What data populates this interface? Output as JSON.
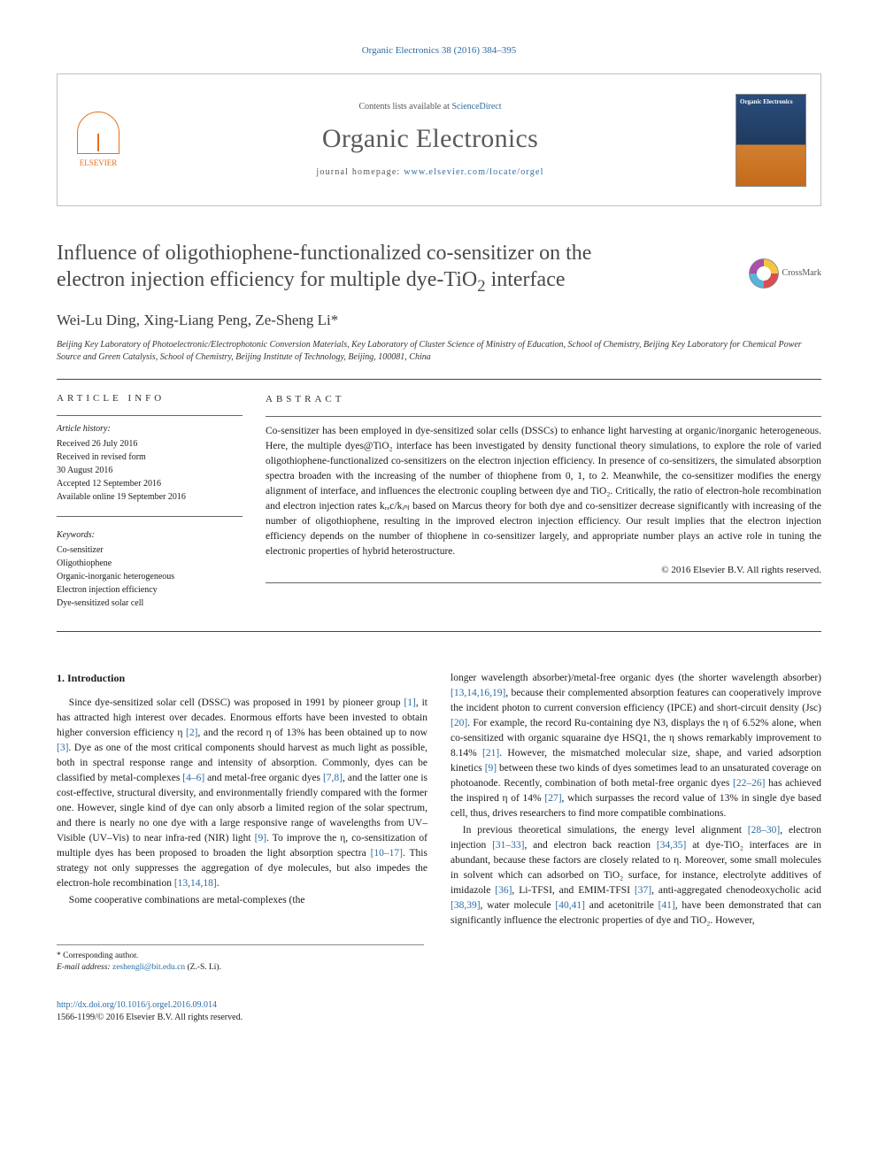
{
  "citation": "Organic Electronics 38 (2016) 384–395",
  "header": {
    "contents_prefix": "Contents lists available at ",
    "contents_link": "ScienceDirect",
    "journal_name": "Organic Electronics",
    "homepage_prefix": "journal homepage: ",
    "homepage_url": "www.elsevier.com/locate/orgel",
    "publisher": "ELSEVIER",
    "cover_title": "Organic Electronics"
  },
  "crossmark_label": "CrossMark",
  "title_line1": "Influence of oligothiophene-functionalized co-sensitizer on the",
  "title_line2": "electron injection efficiency for multiple dye-TiO",
  "title_sub": "2",
  "title_line2_end": " interface",
  "authors_text": "Wei-Lu Ding, Xing-Liang Peng, Ze-Sheng Li",
  "author_corr_mark": "*",
  "affiliation": "Beijing Key Laboratory of Photoelectronic/Electrophotonic Conversion Materials, Key Laboratory of Cluster Science of Ministry of Education, School of Chemistry, Beijing Key Laboratory for Chemical Power Source and Green Catalysis, School of Chemistry, Beijing Institute of Technology, Beijing, 100081, China",
  "article_info": {
    "heading": "ARTICLE INFO",
    "history_label": "Article history:",
    "history": [
      "Received 26 July 2016",
      "Received in revised form",
      "30 August 2016",
      "Accepted 12 September 2016",
      "Available online 19 September 2016"
    ],
    "keywords_label": "Keywords:",
    "keywords": [
      "Co-sensitizer",
      "Oligothiophene",
      "Organic-inorganic heterogeneous",
      "Electron injection efficiency",
      "Dye-sensitized solar cell"
    ]
  },
  "abstract": {
    "heading": "ABSTRACT",
    "text": "Co-sensitizer has been employed in dye-sensitized solar cells (DSSCs) to enhance light harvesting at organic/inorganic heterogeneous. Here, the multiple dyes@TiO₂ interface has been investigated by density functional theory simulations, to explore the role of varied oligothiophene-functionalized co-sensitizers on the electron injection efficiency. In presence of co-sensitizers, the simulated absorption spectra broaden with the increasing of the number of thiophene from 0, 1, to 2. Meanwhile, the co-sensitizer modifies the energy alignment of interface, and influences the electronic coupling between dye and TiO₂. Critically, the ratio of electron-hole recombination and electron injection rates kᵣₑc/kᵢₙⱼ based on Marcus theory for both dye and co-sensitizer decrease significantly with increasing of the number of oligothiophene, resulting in the improved electron injection efficiency. Our result implies that the electron injection efficiency depends on the number of thiophene in co-sensitizer largely, and appropriate number plays an active role in tuning the electronic properties of hybrid heterostructure.",
    "copyright": "© 2016 Elsevier B.V. All rights reserved."
  },
  "intro_heading": "1. Introduction",
  "intro_p1": "Since dye-sensitized solar cell (DSSC) was proposed in 1991 by pioneer group [1], it has attracted high interest over decades. Enormous efforts have been invested to obtain higher conversion efficiency η [2], and the record η of 13% has been obtained up to now [3]. Dye as one of the most critical components should harvest as much light as possible, both in spectral response range and intensity of absorption. Commonly, dyes can be classified by metal-complexes [4–6] and metal-free organic dyes [7,8], and the latter one is cost-effective, structural diversity, and environmentally friendly compared with the former one. However, single kind of dye can only absorb a limited region of the solar spectrum, and there is nearly no one dye with a large responsive range of wavelengths from UV–Visible (UV–Vis) to near infra-red (NIR) light [9]. To improve the η, co-sensitization of multiple dyes has been proposed to broaden the light absorption spectra [10–17]. This strategy not only suppresses the aggregation of dye molecules, but also impedes the electron-hole recombination [13,14,18].",
  "intro_p2": "Some cooperative combinations are metal-complexes (the",
  "intro_p3": "longer wavelength absorber)/metal-free organic dyes (the shorter wavelength absorber) [13,14,16,19], because their complemented absorption features can cooperatively improve the incident photon to current conversion efficiency (IPCE) and short-circuit density (Jsc) [20]. For example, the record Ru-containing dye N3, displays the η of 6.52% alone, when co-sensitized with organic squaraine dye HSQ1, the η shows remarkably improvement to 8.14% [21]. However, the mismatched molecular size, shape, and varied adsorption kinetics [9] between these two kinds of dyes sometimes lead to an unsaturated coverage on photoanode. Recently, combination of both metal-free organic dyes [22–26] has achieved the inspired η of 14% [27], which surpasses the record value of 13% in single dye based cell, thus, drives researchers to find more compatible combinations.",
  "intro_p4": "In previous theoretical simulations, the energy level alignment [28–30], electron injection [31–33], and electron back reaction [34,35] at dye-TiO₂ interfaces are in abundant, because these factors are closely related to η. Moreover, some small molecules in solvent which can adsorbed on TiO₂ surface, for instance, electrolyte additives of imidazole [36], Li-TFSI, and EMIM-TFSI [37], anti-aggregated chenodeoxycholic acid [38,39], water molecule [40,41] and acetonitrile [41], have been demonstrated that can significantly influence the electronic properties of dye and TiO₂. However,",
  "footnote": {
    "corresponding": "* Corresponding author.",
    "email_label": "E-mail address: ",
    "email": "zeshengli@bit.edu.cn",
    "email_name": " (Z.-S. Li)."
  },
  "bottom": {
    "doi": "http://dx.doi.org/10.1016/j.orgel.2016.09.014",
    "issn_line": "1566-1199/© 2016 Elsevier B.V. All rights reserved."
  },
  "colors": {
    "link": "#2d6ca2",
    "orange": "#e4701e",
    "text": "#1a1a1a",
    "subtle": "#5a5a5a"
  }
}
